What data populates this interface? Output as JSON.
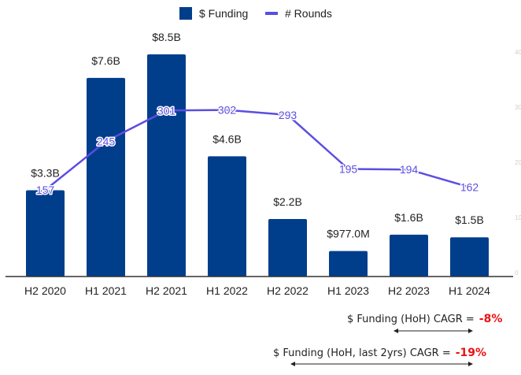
{
  "chart_data": {
    "type": "bar",
    "title": "",
    "xlabel": "",
    "ylabel": "",
    "categories": [
      "H2 2020",
      "H1 2021",
      "H2 2021",
      "H1 2022",
      "H2 2022",
      "H1 2023",
      "H2 2023",
      "H1 2024"
    ],
    "series": [
      {
        "name": "$ Funding",
        "type": "bar",
        "axis": "left",
        "unit": "USD billions",
        "values": [
          3.3,
          7.6,
          8.5,
          4.6,
          2.2,
          0.977,
          1.6,
          1.5
        ],
        "labels": [
          "$3.3B",
          "$7.6B",
          "$8.5B",
          "$4.6B",
          "$2.2B",
          "$977.0M",
          "$1.6B",
          "$1.5B"
        ],
        "color": "#003e8c"
      },
      {
        "name": "# Rounds",
        "type": "line",
        "axis": "right",
        "values": [
          157,
          245,
          301,
          302,
          293,
          195,
          194,
          162
        ],
        "labels": [
          "157",
          "245",
          "301",
          "302",
          "293",
          "195",
          "194",
          "162"
        ],
        "color": "#5b4ee0"
      }
    ],
    "ylim_left": [
      0,
      8.5
    ],
    "ylim_right": [
      0,
      400
    ],
    "right_axis_ticks": [
      "400",
      "300",
      "200",
      "100",
      "0"
    ],
    "grid": false,
    "legend": {
      "position": "top-center",
      "entries": [
        "$ Funding",
        "# Rounds"
      ]
    },
    "annotations": [
      {
        "text": "$ Funding (HoH) CAGR =",
        "value": "-8%",
        "span": [
          "H2 2022",
          "H1 2024"
        ]
      },
      {
        "text": "$ Funding (HoH, last 2yrs) CAGR =",
        "value": "-19%",
        "span": [
          "H2 2021",
          "H1 2024"
        ]
      }
    ]
  },
  "colors": {
    "bar": "#003e8c",
    "line": "#5b4ee0",
    "axis": "#333333",
    "highlight": "#ee1111"
  }
}
